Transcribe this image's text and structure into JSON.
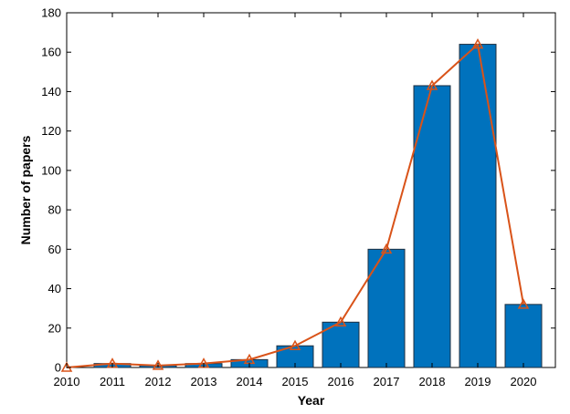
{
  "chart_data": {
    "type": "bar",
    "title": "",
    "xlabel": "Year",
    "ylabel": "Number of papers",
    "x": [
      2010,
      2011,
      2012,
      2013,
      2014,
      2015,
      2016,
      2017,
      2018,
      2019,
      2020
    ],
    "series": [
      {
        "type": "bar",
        "values": [
          0,
          2,
          1,
          2,
          4,
          11,
          23,
          60,
          143,
          164,
          32
        ],
        "color": "#0072BD"
      },
      {
        "type": "line",
        "marker": "triangle",
        "values": [
          0,
          2,
          1,
          2,
          4,
          11,
          23,
          60,
          143,
          164,
          32
        ],
        "color": "#D95319"
      }
    ],
    "xlim": [
      2010,
      2020.7
    ],
    "ylim": [
      0,
      180
    ],
    "yticks": [
      0,
      20,
      40,
      60,
      80,
      100,
      120,
      140,
      160,
      180
    ],
    "xticks": [
      2010,
      2011,
      2012,
      2013,
      2014,
      2015,
      2016,
      2017,
      2018,
      2019,
      2020
    ],
    "grid": false,
    "legend": "none"
  }
}
